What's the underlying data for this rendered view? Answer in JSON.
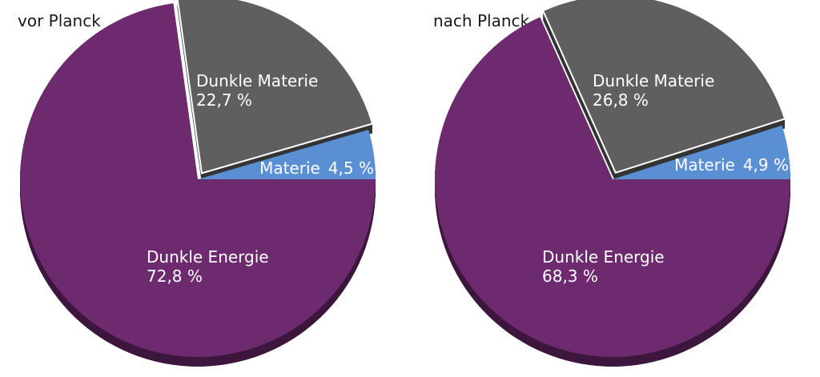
{
  "chart_data": [
    {
      "type": "pie",
      "title": "vor Planck",
      "slices": [
        {
          "label": "Materie",
          "value": 4.5,
          "value_text": "4,5 %",
          "color": "#5b8fd3"
        },
        {
          "label": "Dunkle Materie",
          "value": 22.7,
          "value_text": "22,7 %",
          "color": "#5f5f5f"
        },
        {
          "label": "Dunkle Energie",
          "value": 72.8,
          "value_text": "72,8 %",
          "color": "#6e2a6e"
        }
      ]
    },
    {
      "type": "pie",
      "title": "nach Planck",
      "slices": [
        {
          "label": "Materie",
          "value": 4.9,
          "value_text": "4,9 %",
          "color": "#5b8fd3"
        },
        {
          "label": "Dunkle Materie",
          "value": 26.8,
          "value_text": "26,8 %",
          "color": "#5f5f5f"
        },
        {
          "label": "Dunkle Energie",
          "value": 68.3,
          "value_text": "68,3 %",
          "color": "#6e2a6e"
        }
      ]
    }
  ]
}
